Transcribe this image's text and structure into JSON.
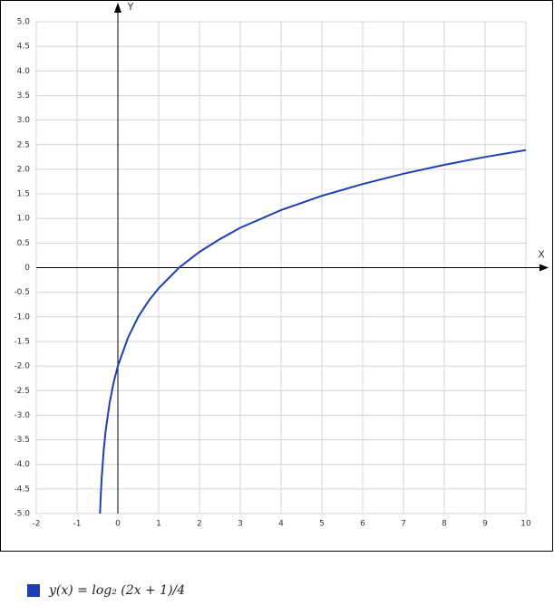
{
  "chart_data": {
    "type": "line",
    "xlabel": "X",
    "ylabel": "Y",
    "x": [
      -0.4375,
      -0.42,
      -0.4,
      -0.35,
      -0.3,
      -0.2,
      -0.1,
      0,
      0.25,
      0.5,
      0.75,
      1,
      1.5,
      2,
      2.5,
      3,
      4,
      5,
      6,
      7,
      8,
      9,
      10
    ],
    "series": [
      {
        "name": "y(x) = log₂ (2x + 1)/4",
        "color": "#1e3fb4",
        "values": [
          -5,
          -4.64,
          -4.32,
          -3.74,
          -3.32,
          -2.74,
          -2.32,
          -2,
          -1.42,
          -1,
          -0.68,
          -0.42,
          0,
          0.32,
          0.58,
          0.81,
          1.17,
          1.46,
          1.7,
          1.91,
          2.09,
          2.25,
          2.39
        ]
      }
    ],
    "xlim": [
      -2,
      10
    ],
    "ylim": [
      -5,
      5
    ],
    "xticks": [
      -2,
      -1,
      0,
      1,
      2,
      3,
      4,
      5,
      6,
      7,
      8,
      9,
      10
    ],
    "yticks": [
      {
        "value": -5,
        "label": "-5.0"
      },
      -4.5,
      {
        "value": -4,
        "label": "-4.0"
      },
      -3.5,
      {
        "value": -3,
        "label": "-3.0"
      },
      -2.5,
      {
        "value": -2,
        "label": "-2.0"
      },
      -1.5,
      {
        "value": -1,
        "label": "-1.0"
      },
      -0.5,
      0,
      0.5,
      {
        "value": 1,
        "label": "1.0"
      },
      1.5,
      {
        "value": 2,
        "label": "2.0"
      },
      2.5,
      {
        "value": 3,
        "label": "3.0"
      },
      3.5,
      {
        "value": 4,
        "label": "4.0"
      },
      4.5,
      {
        "value": 5,
        "label": "5.0"
      }
    ],
    "grid": true
  }
}
